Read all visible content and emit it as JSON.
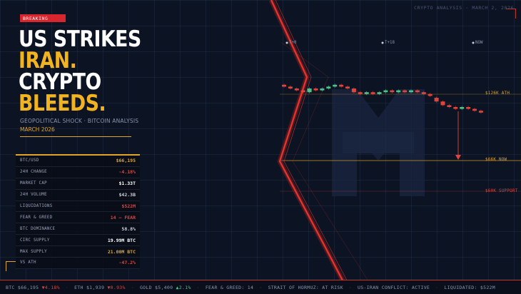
{
  "header": {
    "meta": "CRYPTO ANALYSIS · MARCH 2, 2026"
  },
  "badge": "BREAKING",
  "headline": {
    "line1": "US STRIKES",
    "line2": "IRAN.",
    "line3": "CRYPTO",
    "line4": "BLEEDS."
  },
  "subtitle": "GEOPOLITICAL SHOCK · BITCOIN ANALYSIS",
  "date": "MARCH 2026",
  "colors": {
    "accent": "#e0a52a",
    "alert": "#d7262e",
    "up": "#4cc38a",
    "down": "#e0453d",
    "headline_yellow": "#f2b320"
  },
  "stats": [
    {
      "label": "BTC/USD",
      "value": "$66,195",
      "color": "#e0a52a"
    },
    {
      "label": "24H CHANGE",
      "value": "-4.18%",
      "color": "#e0453d"
    },
    {
      "label": "MARKET CAP",
      "value": "$1.33T",
      "color": "#ffffff"
    },
    {
      "label": "24H VOLUME",
      "value": "$42.3B",
      "color": "#c8d0e0"
    },
    {
      "label": "LIQUIDATIONS",
      "value": "$522M",
      "color": "#e0453d"
    },
    {
      "label": "FEAR & GREED",
      "value": "14 — FEAR",
      "color": "#e0453d"
    },
    {
      "label": "BTC DOMINANCE",
      "value": "58.8%",
      "color": "#c8d0e0"
    },
    {
      "label": "CIRC SUPPLY",
      "value": "19.99M BTC",
      "color": "#ffffff"
    },
    {
      "label": "MAX SUPPLY",
      "value": "21.00M BTC",
      "color": "#e0a52a"
    },
    {
      "label": "VS ATH",
      "value": "-47.2%",
      "color": "#e0453d"
    }
  ],
  "chart_data": {
    "type": "candlestick",
    "time_labels": [
      "T+0",
      "T+18",
      "NOW"
    ],
    "levels": [
      {
        "label": "$126K ATH",
        "color": "#e0a52a"
      },
      {
        "label": "$66K NOW",
        "color": "#e0a52a"
      },
      {
        "label": "$60K SUPPORT",
        "color": "#e0453d"
      }
    ],
    "candles": [
      {
        "o": 0.62,
        "c": 0.61,
        "d": "down"
      },
      {
        "o": 0.61,
        "c": 0.6,
        "d": "down"
      },
      {
        "o": 0.6,
        "c": 0.59,
        "d": "down"
      },
      {
        "o": 0.59,
        "c": 0.58,
        "d": "down"
      },
      {
        "o": 0.58,
        "c": 0.6,
        "d": "up"
      },
      {
        "o": 0.6,
        "c": 0.59,
        "d": "down"
      },
      {
        "o": 0.59,
        "c": 0.6,
        "d": "up"
      },
      {
        "o": 0.6,
        "c": 0.61,
        "d": "up"
      },
      {
        "o": 0.61,
        "c": 0.62,
        "d": "up"
      },
      {
        "o": 0.62,
        "c": 0.61,
        "d": "down"
      },
      {
        "o": 0.61,
        "c": 0.6,
        "d": "down"
      },
      {
        "o": 0.6,
        "c": 0.58,
        "d": "down"
      },
      {
        "o": 0.58,
        "c": 0.57,
        "d": "down"
      },
      {
        "o": 0.57,
        "c": 0.58,
        "d": "up"
      },
      {
        "o": 0.58,
        "c": 0.57,
        "d": "down"
      },
      {
        "o": 0.57,
        "c": 0.58,
        "d": "up"
      },
      {
        "o": 0.58,
        "c": 0.59,
        "d": "up"
      },
      {
        "o": 0.59,
        "c": 0.58,
        "d": "down"
      },
      {
        "o": 0.58,
        "c": 0.59,
        "d": "up"
      },
      {
        "o": 0.59,
        "c": 0.58,
        "d": "down"
      },
      {
        "o": 0.58,
        "c": 0.59,
        "d": "up"
      },
      {
        "o": 0.59,
        "c": 0.58,
        "d": "down"
      },
      {
        "o": 0.58,
        "c": 0.57,
        "d": "down"
      },
      {
        "o": 0.57,
        "c": 0.56,
        "d": "down"
      },
      {
        "o": 0.55,
        "c": 0.53,
        "d": "down"
      },
      {
        "o": 0.53,
        "c": 0.51,
        "d": "down"
      },
      {
        "o": 0.51,
        "c": 0.5,
        "d": "down"
      },
      {
        "o": 0.5,
        "c": 0.49,
        "d": "down"
      },
      {
        "o": 0.49,
        "c": 0.5,
        "d": "up"
      },
      {
        "o": 0.5,
        "c": 0.49,
        "d": "down"
      },
      {
        "o": 0.49,
        "c": 0.48,
        "d": "down"
      },
      {
        "o": 0.48,
        "c": 0.47,
        "d": "down"
      }
    ]
  },
  "ticker": [
    {
      "label": "BTC",
      "value": "$66,195",
      "change": "▼4.18%",
      "dir": "down"
    },
    {
      "label": "ETH",
      "value": "$1,939",
      "change": "▼0.93%",
      "dir": "down"
    },
    {
      "label": "GOLD",
      "value": "$5,400",
      "change": "▲2.1%",
      "dir": "up"
    },
    {
      "label": "FEAR & GREED: 14",
      "value": "",
      "change": "",
      "dir": ""
    },
    {
      "label": "STRAIT OF HORMUZ: AT RISK",
      "value": "",
      "change": "",
      "dir": ""
    },
    {
      "label": "US-IRAN CONFLICT: ACTIVE",
      "value": "",
      "change": "",
      "dir": ""
    },
    {
      "label": "LIQUIDATED: $522M",
      "value": "",
      "change": "",
      "dir": ""
    }
  ]
}
